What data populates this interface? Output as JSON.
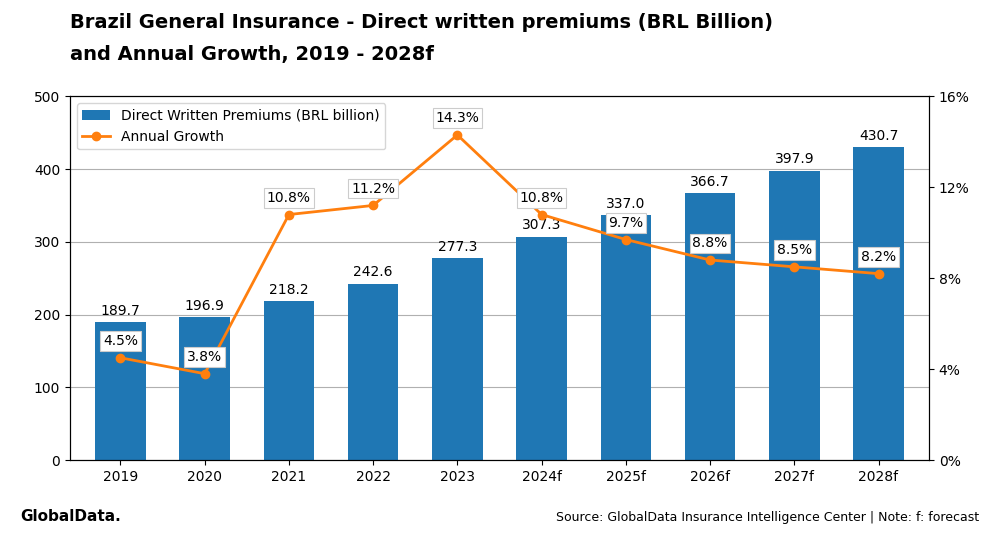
{
  "chart_data": {
    "type": "bar",
    "title": "Brazil General Insurance - Direct written premiums (BRL Billion)",
    "subtitle": "and Annual Growth, 2019 - 2028f",
    "categories": [
      "2019",
      "2020",
      "2021",
      "2022",
      "2023",
      "2024f",
      "2025f",
      "2026f",
      "2027f",
      "2028f"
    ],
    "series": [
      {
        "name": "Direct Written Premiums (BRL billion)",
        "type": "bar",
        "values": [
          189.7,
          196.9,
          218.2,
          242.6,
          277.3,
          307.3,
          337.0,
          366.7,
          397.9,
          430.7
        ]
      },
      {
        "name": "Annual Growth",
        "type": "line",
        "axis": "y2",
        "marker": "o",
        "values": [
          0.045,
          0.038,
          0.108,
          0.112,
          0.143,
          0.108,
          0.097,
          0.088,
          0.085,
          0.082
        ],
        "value_labels": [
          "4.5%",
          "3.8%",
          "10.8%",
          "11.2%",
          "14.3%",
          "10.8%",
          "9.7%",
          "8.8%",
          "8.5%",
          "8.2%"
        ]
      }
    ],
    "ylim": [
      0,
      500
    ],
    "yticks": [
      0,
      100,
      200,
      300,
      400,
      500
    ],
    "y2lim": [
      0,
      0.16
    ],
    "y2ticks": [
      {
        "value": 0,
        "label": "0%"
      },
      {
        "value": 0.04,
        "label": "4%"
      },
      {
        "value": 0.08,
        "label": "8%"
      },
      {
        "value": 0.12,
        "label": "12%"
      },
      {
        "value": 0.16,
        "label": "16%"
      }
    ],
    "grid": true,
    "legend": "upper left",
    "data_labels": true,
    "annotations": [
      "Source: GlobalData Insurance Intelligence Center | Note: f: forecast",
      "GlobalData."
    ]
  }
}
